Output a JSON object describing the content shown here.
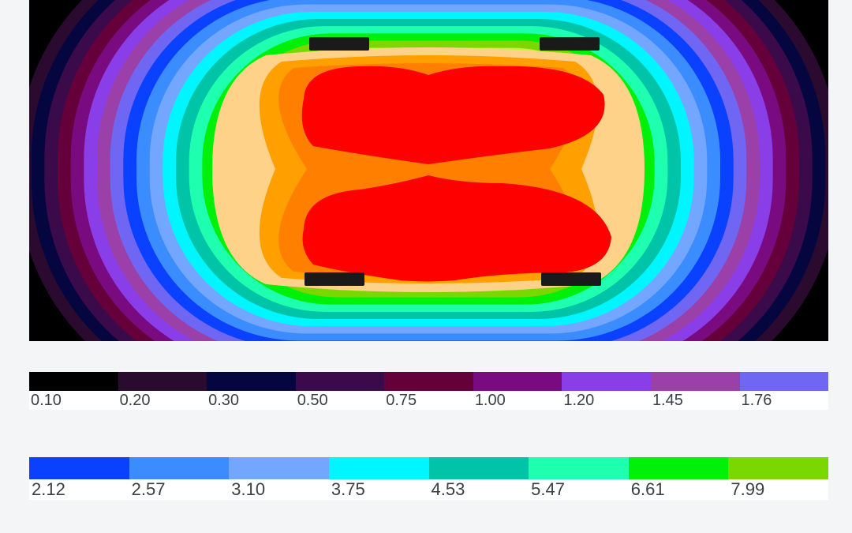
{
  "contour": {
    "background": "#000000",
    "level_colors": [
      "#2a0a2e",
      "#050540",
      "#3a0a4a",
      "#65003a",
      "#7a0a80",
      "#8a3ee8",
      "#9a40a8",
      "#6f67f3",
      "#0a40ff",
      "#3a8cff",
      "#73a6ff",
      "#00f6ff",
      "#00c4a8",
      "#1fffb0",
      "#00f00a",
      "#7ad800",
      "#c8f040",
      "#ffff00",
      "#ffd28a",
      "#ffa000",
      "#ff8000",
      "#ff0000"
    ]
  },
  "luminaires": {
    "count": 4,
    "color": "#1a1a1a"
  },
  "legend": {
    "row1": [
      {
        "value": "0.10",
        "color": "#000000"
      },
      {
        "value": "0.20",
        "color": "#2a0a2e"
      },
      {
        "value": "0.30",
        "color": "#050540"
      },
      {
        "value": "0.50",
        "color": "#3a0a4a"
      },
      {
        "value": "0.75",
        "color": "#65003a"
      },
      {
        "value": "1.00",
        "color": "#7a0a80"
      },
      {
        "value": "1.20",
        "color": "#8a3ee8"
      },
      {
        "value": "1.45",
        "color": "#9a40a8"
      },
      {
        "value": "1.76",
        "color": "#6f67f3"
      }
    ],
    "row2": [
      {
        "value": "2.12",
        "color": "#0a40ff"
      },
      {
        "value": "2.57",
        "color": "#3a8cff"
      },
      {
        "value": "3.10",
        "color": "#73a6ff"
      },
      {
        "value": "3.75",
        "color": "#00f6ff"
      },
      {
        "value": "4.53",
        "color": "#00c4a8"
      },
      {
        "value": "5.47",
        "color": "#1fffb0"
      },
      {
        "value": "6.61",
        "color": "#00f00a"
      },
      {
        "value": "7.99",
        "color": "#7ad800"
      }
    ]
  }
}
